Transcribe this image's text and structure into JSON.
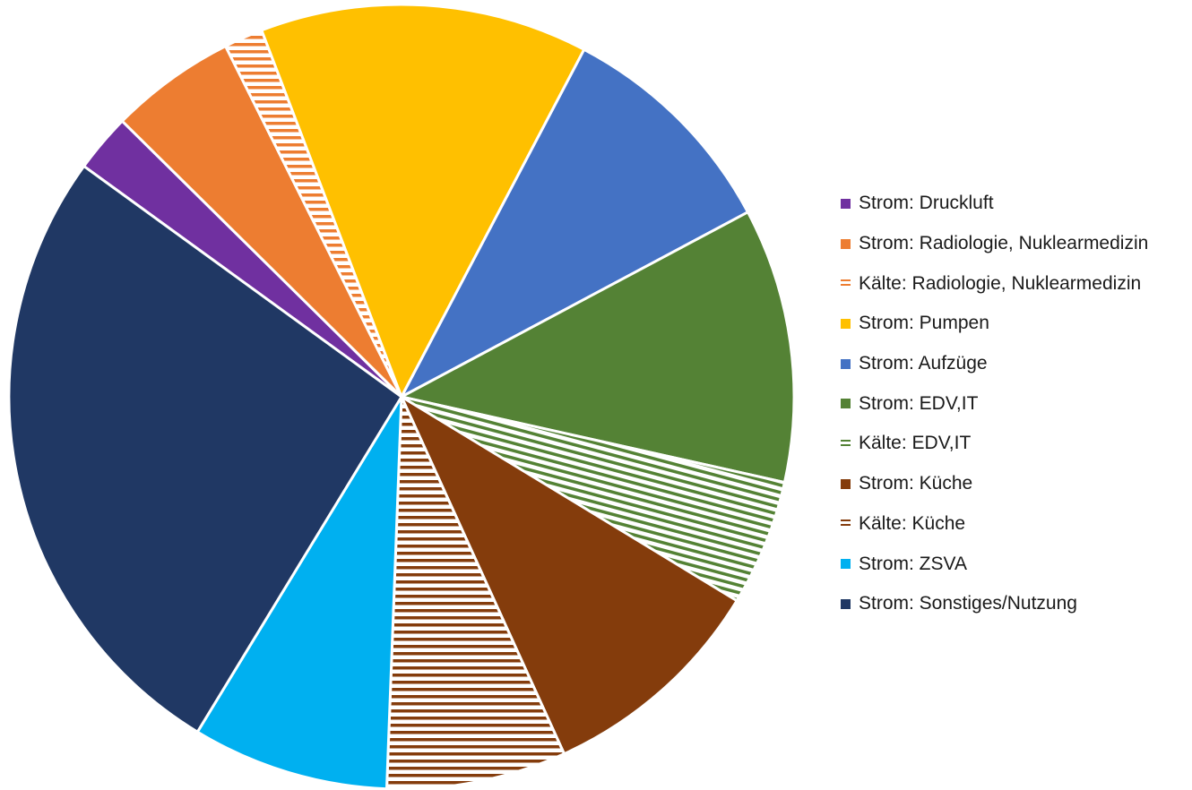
{
  "chart_data": {
    "type": "pie",
    "title": "",
    "start_angle_deg": 306,
    "direction": "clockwise",
    "legend_position": "right",
    "slices": [
      {
        "label": "Strom: Druckluft",
        "value": 2.4,
        "color": "#7030A0",
        "pattern": "solid"
      },
      {
        "label": "Strom: Radiologie, Nuklearmedizin",
        "value": 5.2,
        "color": "#ED7D31",
        "pattern": "solid"
      },
      {
        "label": "Kälte: Radiologie, Nuklearmedizin",
        "value": 1.6,
        "color": "#ED7D31",
        "pattern": "horizontal-stripes"
      },
      {
        "label": "Strom: Pumpen",
        "value": 13.5,
        "color": "#FFC000",
        "pattern": "solid"
      },
      {
        "label": "Strom: Aufzüge",
        "value": 9.5,
        "color": "#4472C4",
        "pattern": "solid"
      },
      {
        "label": "Strom: EDV,IT",
        "value": 11.3,
        "color": "#548235",
        "pattern": "solid"
      },
      {
        "label": "Kälte: EDV,IT",
        "value": 5.2,
        "color": "#548235",
        "pattern": "diagonal-stripes"
      },
      {
        "label": "Strom: Küche",
        "value": 9.5,
        "color": "#843C0C",
        "pattern": "solid"
      },
      {
        "label": "Kälte: Küche",
        "value": 7.4,
        "color": "#843C0C",
        "pattern": "horizontal-stripes"
      },
      {
        "label": "Strom: ZSVA",
        "value": 8.1,
        "color": "#00B0F0",
        "pattern": "solid"
      },
      {
        "label": "Strom: Sonstiges/Nutzung",
        "value": 26.3,
        "color": "#203864",
        "pattern": "solid"
      }
    ]
  }
}
